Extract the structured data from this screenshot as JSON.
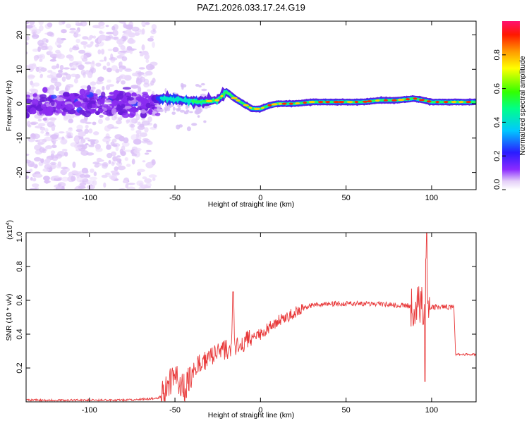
{
  "figure": {
    "title": "PAZ1.2026.033.17.24.G19"
  },
  "chart_data": [
    {
      "type": "heatmap",
      "name": "spectrogram",
      "xlabel": "Height of straight line (km)",
      "ylabel": "Frequency (Hz)",
      "xlim": [
        -137,
        126
      ],
      "ylim": [
        -25,
        24
      ],
      "xticks": [
        -100,
        -50,
        0,
        50,
        100
      ],
      "yticks": [
        -20,
        -10,
        0,
        10,
        20
      ],
      "ridge": {
        "x": [
          -137,
          -100,
          -65,
          -55,
          -45,
          -35,
          -25,
          -20,
          -15,
          -10,
          -5,
          0,
          5,
          10,
          20,
          30,
          40,
          50,
          60,
          70,
          80,
          90,
          95,
          100,
          110,
          126
        ],
        "freq": [
          1.0,
          0.5,
          1.5,
          1.5,
          1.0,
          0.5,
          1.0,
          3.5,
          1.5,
          0.0,
          -1.5,
          -1.5,
          -0.5,
          0.0,
          0.0,
          0.5,
          0.5,
          0.5,
          0.5,
          1.0,
          1.0,
          1.5,
          1.0,
          0.5,
          0.5,
          0.5
        ]
      },
      "colorbar": {
        "label": "Normalized spectral amplitude",
        "range": [
          0,
          1
        ],
        "ticks": [
          "0.0",
          "0.2",
          "0.4",
          "0.6",
          "0.8"
        ],
        "tick_values": [
          0.0,
          0.2,
          0.4,
          0.6,
          0.8
        ]
      }
    },
    {
      "type": "line",
      "name": "snr",
      "xlabel": "Height of straight line (km)",
      "ylabel": "SNR (10 * v/v)",
      "ylabel_scale": "(x10",
      "ylabel_scale_exp": "4",
      "ylabel_scale_close": ")",
      "xlim": [
        -137,
        126
      ],
      "ylim": [
        0,
        1.0
      ],
      "xticks": [
        -100,
        -50,
        0,
        50,
        100
      ],
      "yticks": [
        0.2,
        0.4,
        0.6,
        0.8,
        1.0
      ],
      "ytick_labels": [
        "0.2",
        "0.4",
        "0.6",
        "0.8",
        "1.0"
      ],
      "color": "#e8393a",
      "series": [
        {
          "name": "SNR",
          "x": [
            -137,
            -100,
            -80,
            -60,
            -56,
            -54,
            -50,
            -47,
            -44,
            -40,
            -36,
            -32,
            -28,
            -24,
            -20,
            -17,
            -16,
            -15,
            -12,
            -8,
            -4,
            0,
            5,
            10,
            15,
            20,
            25,
            30,
            40,
            50,
            60,
            70,
            80,
            85,
            90,
            94,
            96,
            97,
            98,
            100,
            105,
            110,
            113,
            114,
            116,
            120,
            126
          ],
          "y": [
            0.01,
            0.01,
            0.01,
            0.02,
            0.05,
            0.1,
            0.15,
            0.12,
            0.08,
            0.18,
            0.22,
            0.25,
            0.27,
            0.29,
            0.31,
            0.3,
            0.65,
            0.33,
            0.34,
            0.37,
            0.38,
            0.4,
            0.44,
            0.48,
            0.5,
            0.53,
            0.55,
            0.57,
            0.58,
            0.58,
            0.58,
            0.58,
            0.57,
            0.57,
            0.56,
            0.57,
            0.55,
            1.0,
            0.55,
            0.56,
            0.56,
            0.56,
            0.56,
            0.28,
            0.28,
            0.28,
            0.28
          ]
        }
      ]
    }
  ]
}
